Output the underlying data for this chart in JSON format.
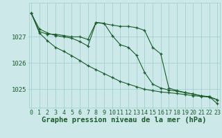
{
  "background_color": "#cce8e8",
  "grid_color": "#99cccc",
  "line_color": "#1a5c2a",
  "xlabel": "Graphe pression niveau de la mer (hPa)",
  "xlabel_fontsize": 7.5,
  "tick_fontsize": 6.0,
  "ytick_labels": [
    1025,
    1026,
    1027
  ],
  "ylim": [
    1024.3,
    1028.3
  ],
  "xlim": [
    -0.3,
    23.3
  ],
  "xticks": [
    0,
    1,
    2,
    3,
    4,
    5,
    6,
    7,
    8,
    9,
    10,
    11,
    12,
    13,
    14,
    15,
    16,
    17,
    18,
    19,
    20,
    21,
    22,
    23
  ],
  "series1": [
    1027.9,
    1027.2,
    1027.1,
    1027.1,
    1027.05,
    1027.0,
    1027.0,
    1026.9,
    1027.55,
    1027.5,
    1027.45,
    1027.4,
    1027.4,
    1027.35,
    1027.25,
    1026.6,
    1026.35,
    1025.05,
    1024.95,
    1024.88,
    1024.82,
    1024.75,
    1024.72,
    1024.6
  ],
  "series2": [
    1027.9,
    1027.15,
    1026.85,
    1026.6,
    1026.45,
    1026.28,
    1026.1,
    1025.9,
    1025.75,
    1025.6,
    1025.45,
    1025.3,
    1025.2,
    1025.1,
    1025.0,
    1024.95,
    1024.9,
    1024.87,
    1024.84,
    1024.8,
    1024.76,
    1024.73,
    1024.7,
    1024.6
  ],
  "series3": [
    1027.9,
    1027.3,
    1027.15,
    1027.05,
    1027.0,
    1026.95,
    1026.82,
    1026.65,
    1027.55,
    1027.52,
    1027.05,
    1026.7,
    1026.6,
    1026.3,
    1025.65,
    1025.2,
    1025.05,
    1024.97,
    1024.93,
    1024.87,
    1024.82,
    1024.75,
    1024.72,
    1024.45
  ]
}
